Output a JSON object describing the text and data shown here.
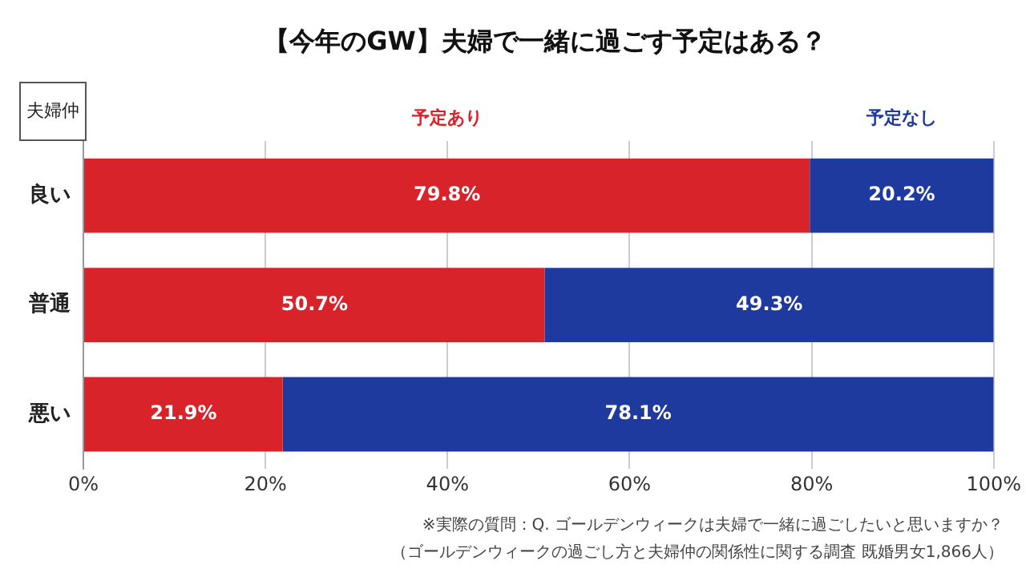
{
  "chart_data": {
    "type": "bar",
    "orientation": "horizontal",
    "stacked": true,
    "title": "【今年のGW】夫婦で一緒に過ごす予定はある？",
    "ylabel": "夫婦仲",
    "categories": [
      "良い",
      "普通",
      "悪い"
    ],
    "series": [
      {
        "name": "予定あり",
        "color": "#d8232a",
        "values": [
          79.8,
          50.7,
          21.9
        ],
        "value_labels": [
          "79.8%",
          "50.7%",
          "21.9%"
        ]
      },
      {
        "name": "予定なし",
        "color": "#1f3a9e",
        "values": [
          20.2,
          49.3,
          78.1
        ],
        "value_labels": [
          "20.2%",
          "49.3%",
          "78.1%"
        ]
      }
    ],
    "xlim": [
      0,
      100
    ],
    "xticks": [
      {
        "value": 0,
        "label": "0%"
      },
      {
        "value": 20,
        "label": "20%"
      },
      {
        "value": 40,
        "label": "40%"
      },
      {
        "value": 60,
        "label": "60%"
      },
      {
        "value": 80,
        "label": "80%"
      },
      {
        "value": 100,
        "label": "100%"
      }
    ],
    "grid": "x",
    "legend": false,
    "annotations": [
      "※実際の質問：Q. ゴールデンウィークは夫婦で一緒に過ごしたいと思いますか？",
      "（ゴールデンウィークの過ごし方と夫婦仲の関係性に関する調査 既婚男女1,866人）"
    ]
  }
}
